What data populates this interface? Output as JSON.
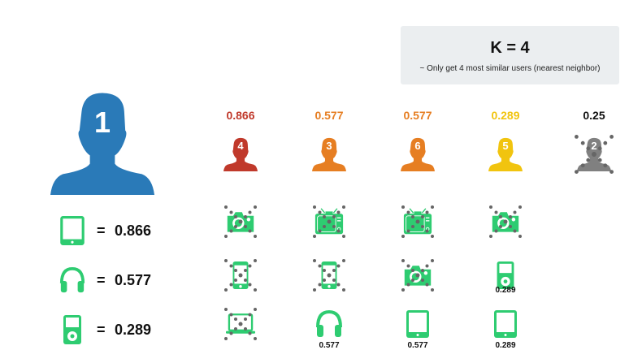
{
  "k_box": {
    "title": "K = 4",
    "subtitle": "~ Only get 4 most similar users (nearest neighbor)"
  },
  "target_user": {
    "id": "1",
    "color": "#2a7ab8"
  },
  "target_items": [
    {
      "icon": "tablet-icon",
      "value": "0.866"
    },
    {
      "icon": "headphones-icon",
      "value": "0.577"
    },
    {
      "icon": "ipod-icon",
      "value": "0.289"
    }
  ],
  "equals": "=",
  "item_color": "#2ecc71",
  "cross_color": "#666666",
  "neighbors": [
    {
      "id": "4",
      "score": "0.866",
      "color": "#c0392b",
      "crossed": false,
      "items": [
        {
          "icon": "camera-icon",
          "crossed": true,
          "value": ""
        },
        {
          "icon": "phone-icon",
          "crossed": true,
          "value": ""
        },
        {
          "icon": "laptop-icon",
          "crossed": true,
          "value": ""
        }
      ]
    },
    {
      "id": "3",
      "score": "0.577",
      "color": "#e67e22",
      "crossed": false,
      "items": [
        {
          "icon": "tv-icon",
          "crossed": true,
          "value": ""
        },
        {
          "icon": "phone-icon",
          "crossed": true,
          "value": ""
        },
        {
          "icon": "headphones-icon",
          "crossed": false,
          "value": "0.577"
        }
      ]
    },
    {
      "id": "6",
      "score": "0.577",
      "color": "#e67e22",
      "crossed": false,
      "items": [
        {
          "icon": "tv-icon",
          "crossed": true,
          "value": ""
        },
        {
          "icon": "camera-icon",
          "crossed": true,
          "value": ""
        },
        {
          "icon": "tablet-icon",
          "crossed": false,
          "value": "0.577"
        }
      ]
    },
    {
      "id": "5",
      "score": "0.289",
      "color": "#f1c40f",
      "crossed": false,
      "items": [
        {
          "icon": "camera-icon",
          "crossed": true,
          "value": ""
        },
        {
          "icon": "ipod-icon",
          "crossed": false,
          "value": "0.289"
        },
        {
          "icon": "tablet-icon",
          "crossed": false,
          "value": "0.289"
        }
      ]
    },
    {
      "id": "2",
      "score": "0.25",
      "color": "#808080",
      "crossed": true,
      "score_color": "#111111",
      "items": []
    }
  ]
}
